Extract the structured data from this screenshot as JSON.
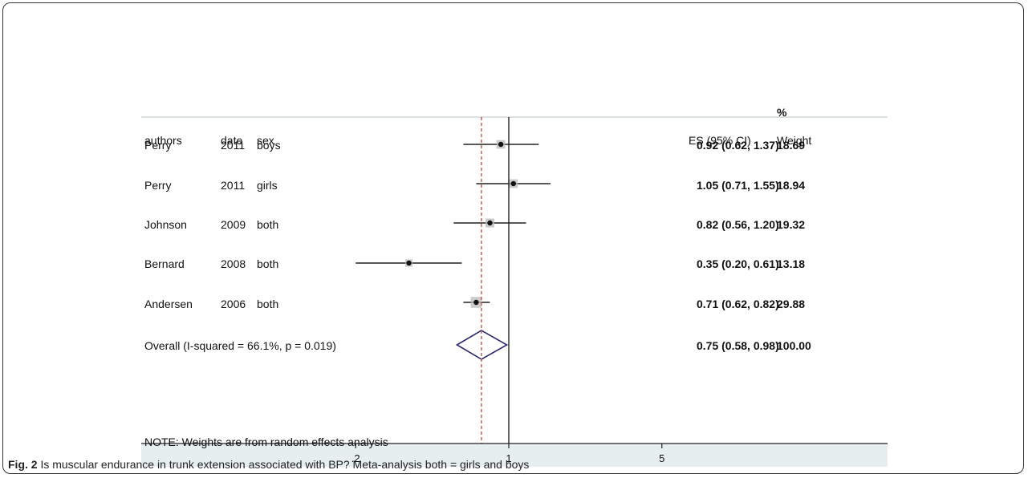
{
  "caption": {
    "label": "Fig. 2",
    "text": "Is muscular endurance in trunk extension associated with BP? Meta-analysis both = girls and boys"
  },
  "chart_data": {
    "type": "forest",
    "headers": {
      "authors": "authors",
      "date": "date",
      "sex": "sex",
      "es": "ES (95% CI)",
      "weight_top": "%",
      "weight": "Weight"
    },
    "studies": [
      {
        "authors": "Perry",
        "date": "2011",
        "sex": "boys",
        "es": 0.92,
        "lo": 0.62,
        "hi": 1.37,
        "es_label": "0.92 (0.62, 1.37)",
        "weight": "18.69"
      },
      {
        "authors": "Perry",
        "date": "2011",
        "sex": "girls",
        "es": 1.05,
        "lo": 0.71,
        "hi": 1.55,
        "es_label": "1.05 (0.71, 1.55)",
        "weight": "18.94"
      },
      {
        "authors": "Johnson",
        "date": "2009",
        "sex": "both",
        "es": 0.82,
        "lo": 0.56,
        "hi": 1.2,
        "es_label": "0.82 (0.56, 1.20)",
        "weight": "19.32"
      },
      {
        "authors": "Bernard",
        "date": "2008",
        "sex": "both",
        "es": 0.35,
        "lo": 0.2,
        "hi": 0.61,
        "es_label": "0.35 (0.20, 0.61)",
        "weight": "13.18"
      },
      {
        "authors": "Andersen",
        "date": "2006",
        "sex": "both",
        "es": 0.71,
        "lo": 0.62,
        "hi": 0.82,
        "es_label": "0.71 (0.62, 0.82)",
        "weight": "29.88"
      }
    ],
    "overall": {
      "label": "Overall  (I-squared = 66.1%, p = 0.019)",
      "es": 0.75,
      "lo": 0.58,
      "hi": 0.98,
      "es_label": "0.75 (0.58, 0.98)",
      "weight": "100.00"
    },
    "note": "NOTE: Weights are from random effects analysis",
    "x_ticks": [
      {
        "value": 0.2,
        "label": ".2"
      },
      {
        "value": 1,
        "label": "1"
      },
      {
        "value": 5,
        "label": "5"
      }
    ],
    "x_scale": "log",
    "null_line": 1,
    "colors": {
      "diamond": "#2b2a6e",
      "overall_line": "#c0544f",
      "axis_band": "#e6eef0"
    }
  }
}
